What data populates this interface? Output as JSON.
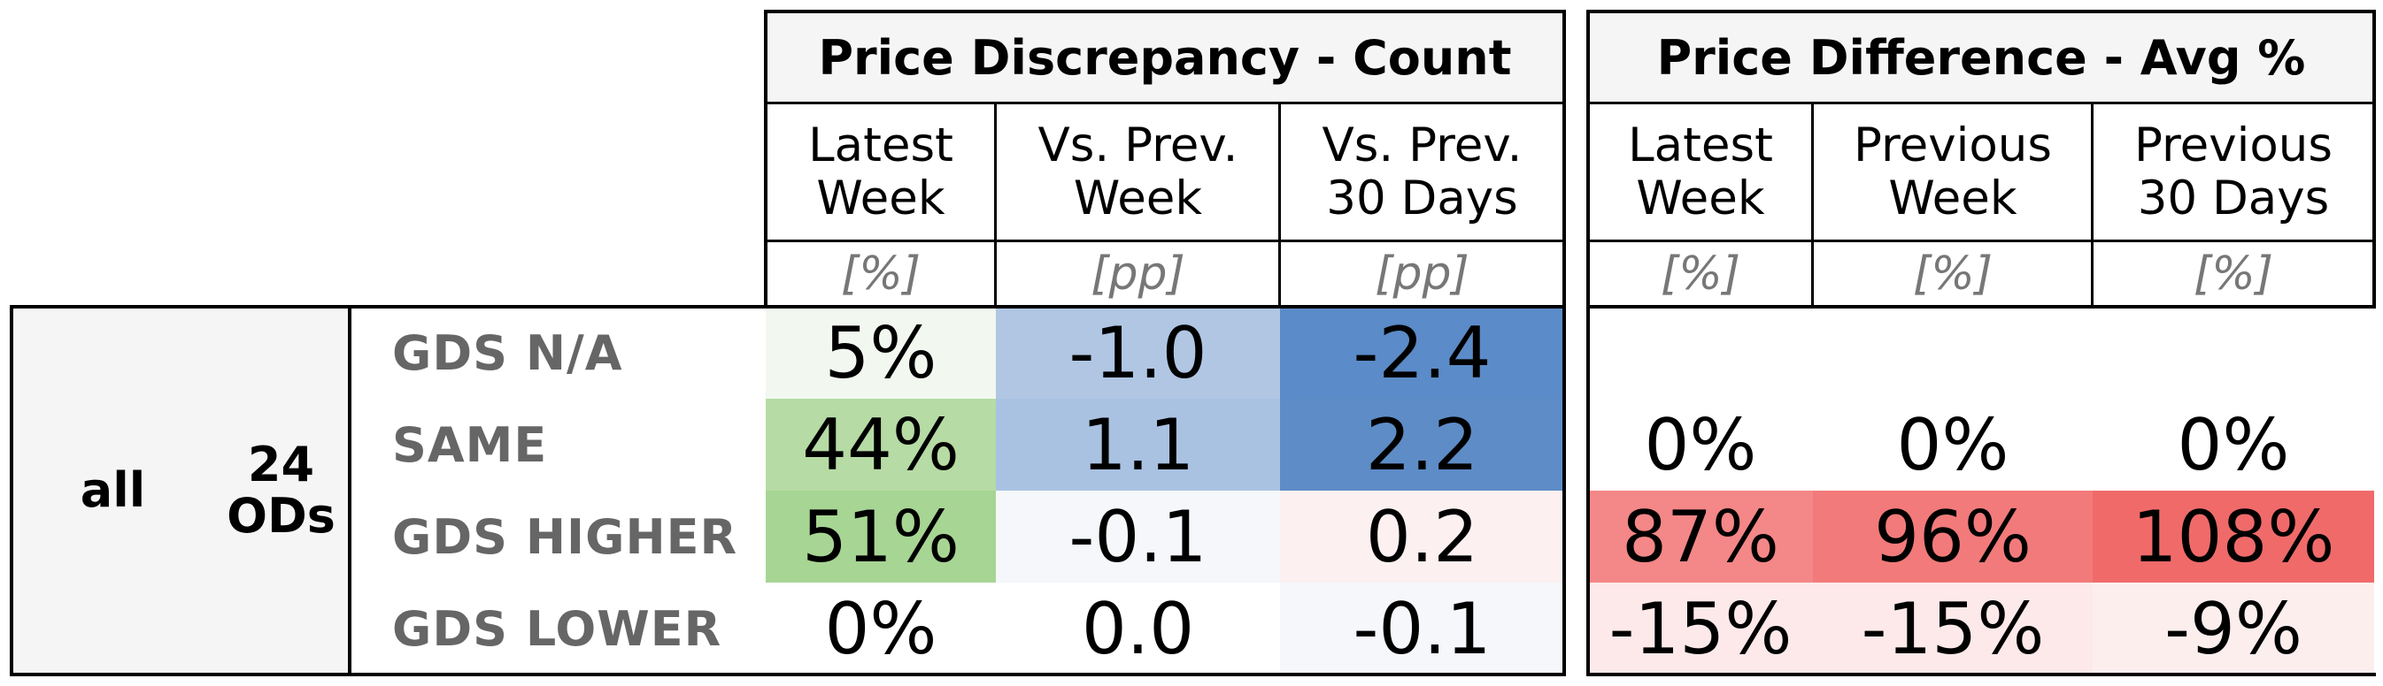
{
  "panels": [
    {
      "title": "Price Discrepancy - Count",
      "columns": [
        {
          "header": "Latest\nWeek",
          "unit": "[%]"
        },
        {
          "header": "Vs. Prev.\nWeek",
          "unit": "[pp]"
        },
        {
          "header": "Vs. Prev.\n30 Days",
          "unit": "[pp]"
        }
      ]
    },
    {
      "title": "Price Difference - Avg %",
      "columns": [
        {
          "header": "Latest\nWeek",
          "unit": "[%]"
        },
        {
          "header": "Previous\nWeek",
          "unit": "[%]"
        },
        {
          "header": "Previous\n30 Days",
          "unit": "[%]"
        }
      ]
    }
  ],
  "group": {
    "label": "all",
    "count": "24\nODs"
  },
  "rows": [
    "GDS N/A",
    "SAME",
    "GDS HIGHER",
    "GDS LOWER"
  ],
  "cells": [
    [
      {
        "text": "5%",
        "bg": "#f2f8f0"
      },
      {
        "text": "-1.0",
        "bg": "#b0c6e3"
      },
      {
        "text": "-2.4",
        "bg": "#5b8bc8"
      },
      {
        "text": "",
        "bg": "#ffffff"
      },
      {
        "text": "",
        "bg": "#ffffff"
      },
      {
        "text": "",
        "bg": "#ffffff"
      }
    ],
    [
      {
        "text": "44%",
        "bg": "#b6dba4"
      },
      {
        "text": "1.1",
        "bg": "#a9c2e2"
      },
      {
        "text": "2.2",
        "bg": "#5e8cc7"
      },
      {
        "text": "0%",
        "bg": "#ffffff"
      },
      {
        "text": "0%",
        "bg": "#ffffff"
      },
      {
        "text": "0%",
        "bg": "#ffffff"
      }
    ],
    [
      {
        "text": "51%",
        "bg": "#a7d594"
      },
      {
        "text": "-0.1",
        "bg": "#f5f7fb"
      },
      {
        "text": "0.2",
        "bg": "#fdf0f0"
      },
      {
        "text": "87%",
        "bg": "#f48787"
      },
      {
        "text": "96%",
        "bg": "#f27a7a"
      },
      {
        "text": "108%",
        "bg": "#f06a6a"
      }
    ],
    [
      {
        "text": "0%",
        "bg": "#ffffff"
      },
      {
        "text": "0.0",
        "bg": "#ffffff"
      },
      {
        "text": "-0.1",
        "bg": "#f5f7fb"
      },
      {
        "text": "-15%",
        "bg": "#fde9e9"
      },
      {
        "text": "-15%",
        "bg": "#fde9e9"
      },
      {
        "text": "-9%",
        "bg": "#fdeeee"
      }
    ]
  ],
  "chart_data": {
    "type": "table",
    "tables": [
      {
        "title": "Price Discrepancy - Count",
        "columns": [
          "Latest Week [%]",
          "Vs. Prev. Week [pp]",
          "Vs. Prev. 30 Days [pp]"
        ],
        "rows": {
          "GDS N/A": [
            5,
            -1.0,
            -2.4
          ],
          "SAME": [
            44,
            1.1,
            2.2
          ],
          "GDS HIGHER": [
            51,
            -0.1,
            0.2
          ],
          "GDS LOWER": [
            0,
            0.0,
            -0.1
          ]
        }
      },
      {
        "title": "Price Difference - Avg %",
        "columns": [
          "Latest Week [%]",
          "Previous Week [%]",
          "Previous 30 Days [%]"
        ],
        "rows": {
          "GDS N/A": [
            null,
            null,
            null
          ],
          "SAME": [
            0,
            0,
            0
          ],
          "GDS HIGHER": [
            87,
            96,
            108
          ],
          "GDS LOWER": [
            -15,
            -15,
            -9
          ]
        }
      }
    ],
    "group": "all",
    "group_count": "24 ODs"
  }
}
